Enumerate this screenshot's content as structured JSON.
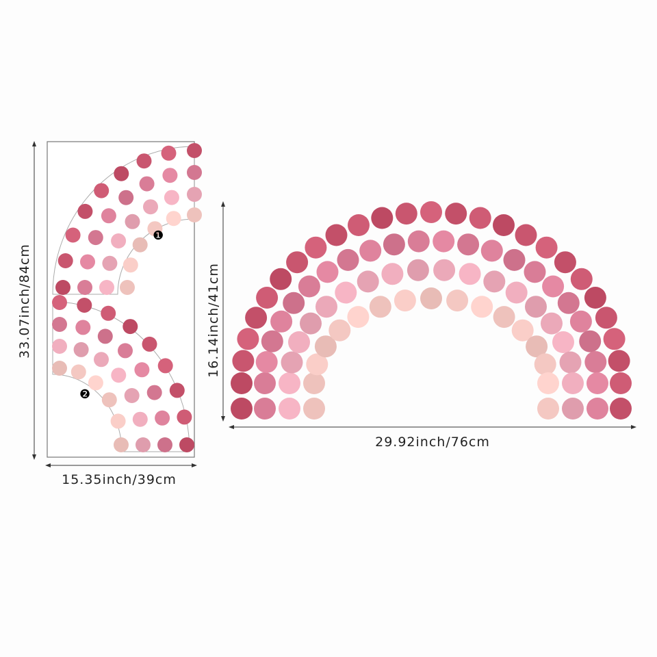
{
  "left_panel": {
    "height_label": "33.07inch/84cm",
    "width_label": "15.35inch/39cm",
    "piece_labels": [
      "❶",
      "❷"
    ]
  },
  "rainbow": {
    "height_label": "16.14inch/41cm",
    "width_label": "29.92inch/76cm"
  },
  "colors": {
    "ring_colors": [
      "#c9566f",
      "#d97d97",
      "#eba9b9",
      "#f4c8c2"
    ],
    "outline": "#999999",
    "dimension_line": "#333333"
  }
}
